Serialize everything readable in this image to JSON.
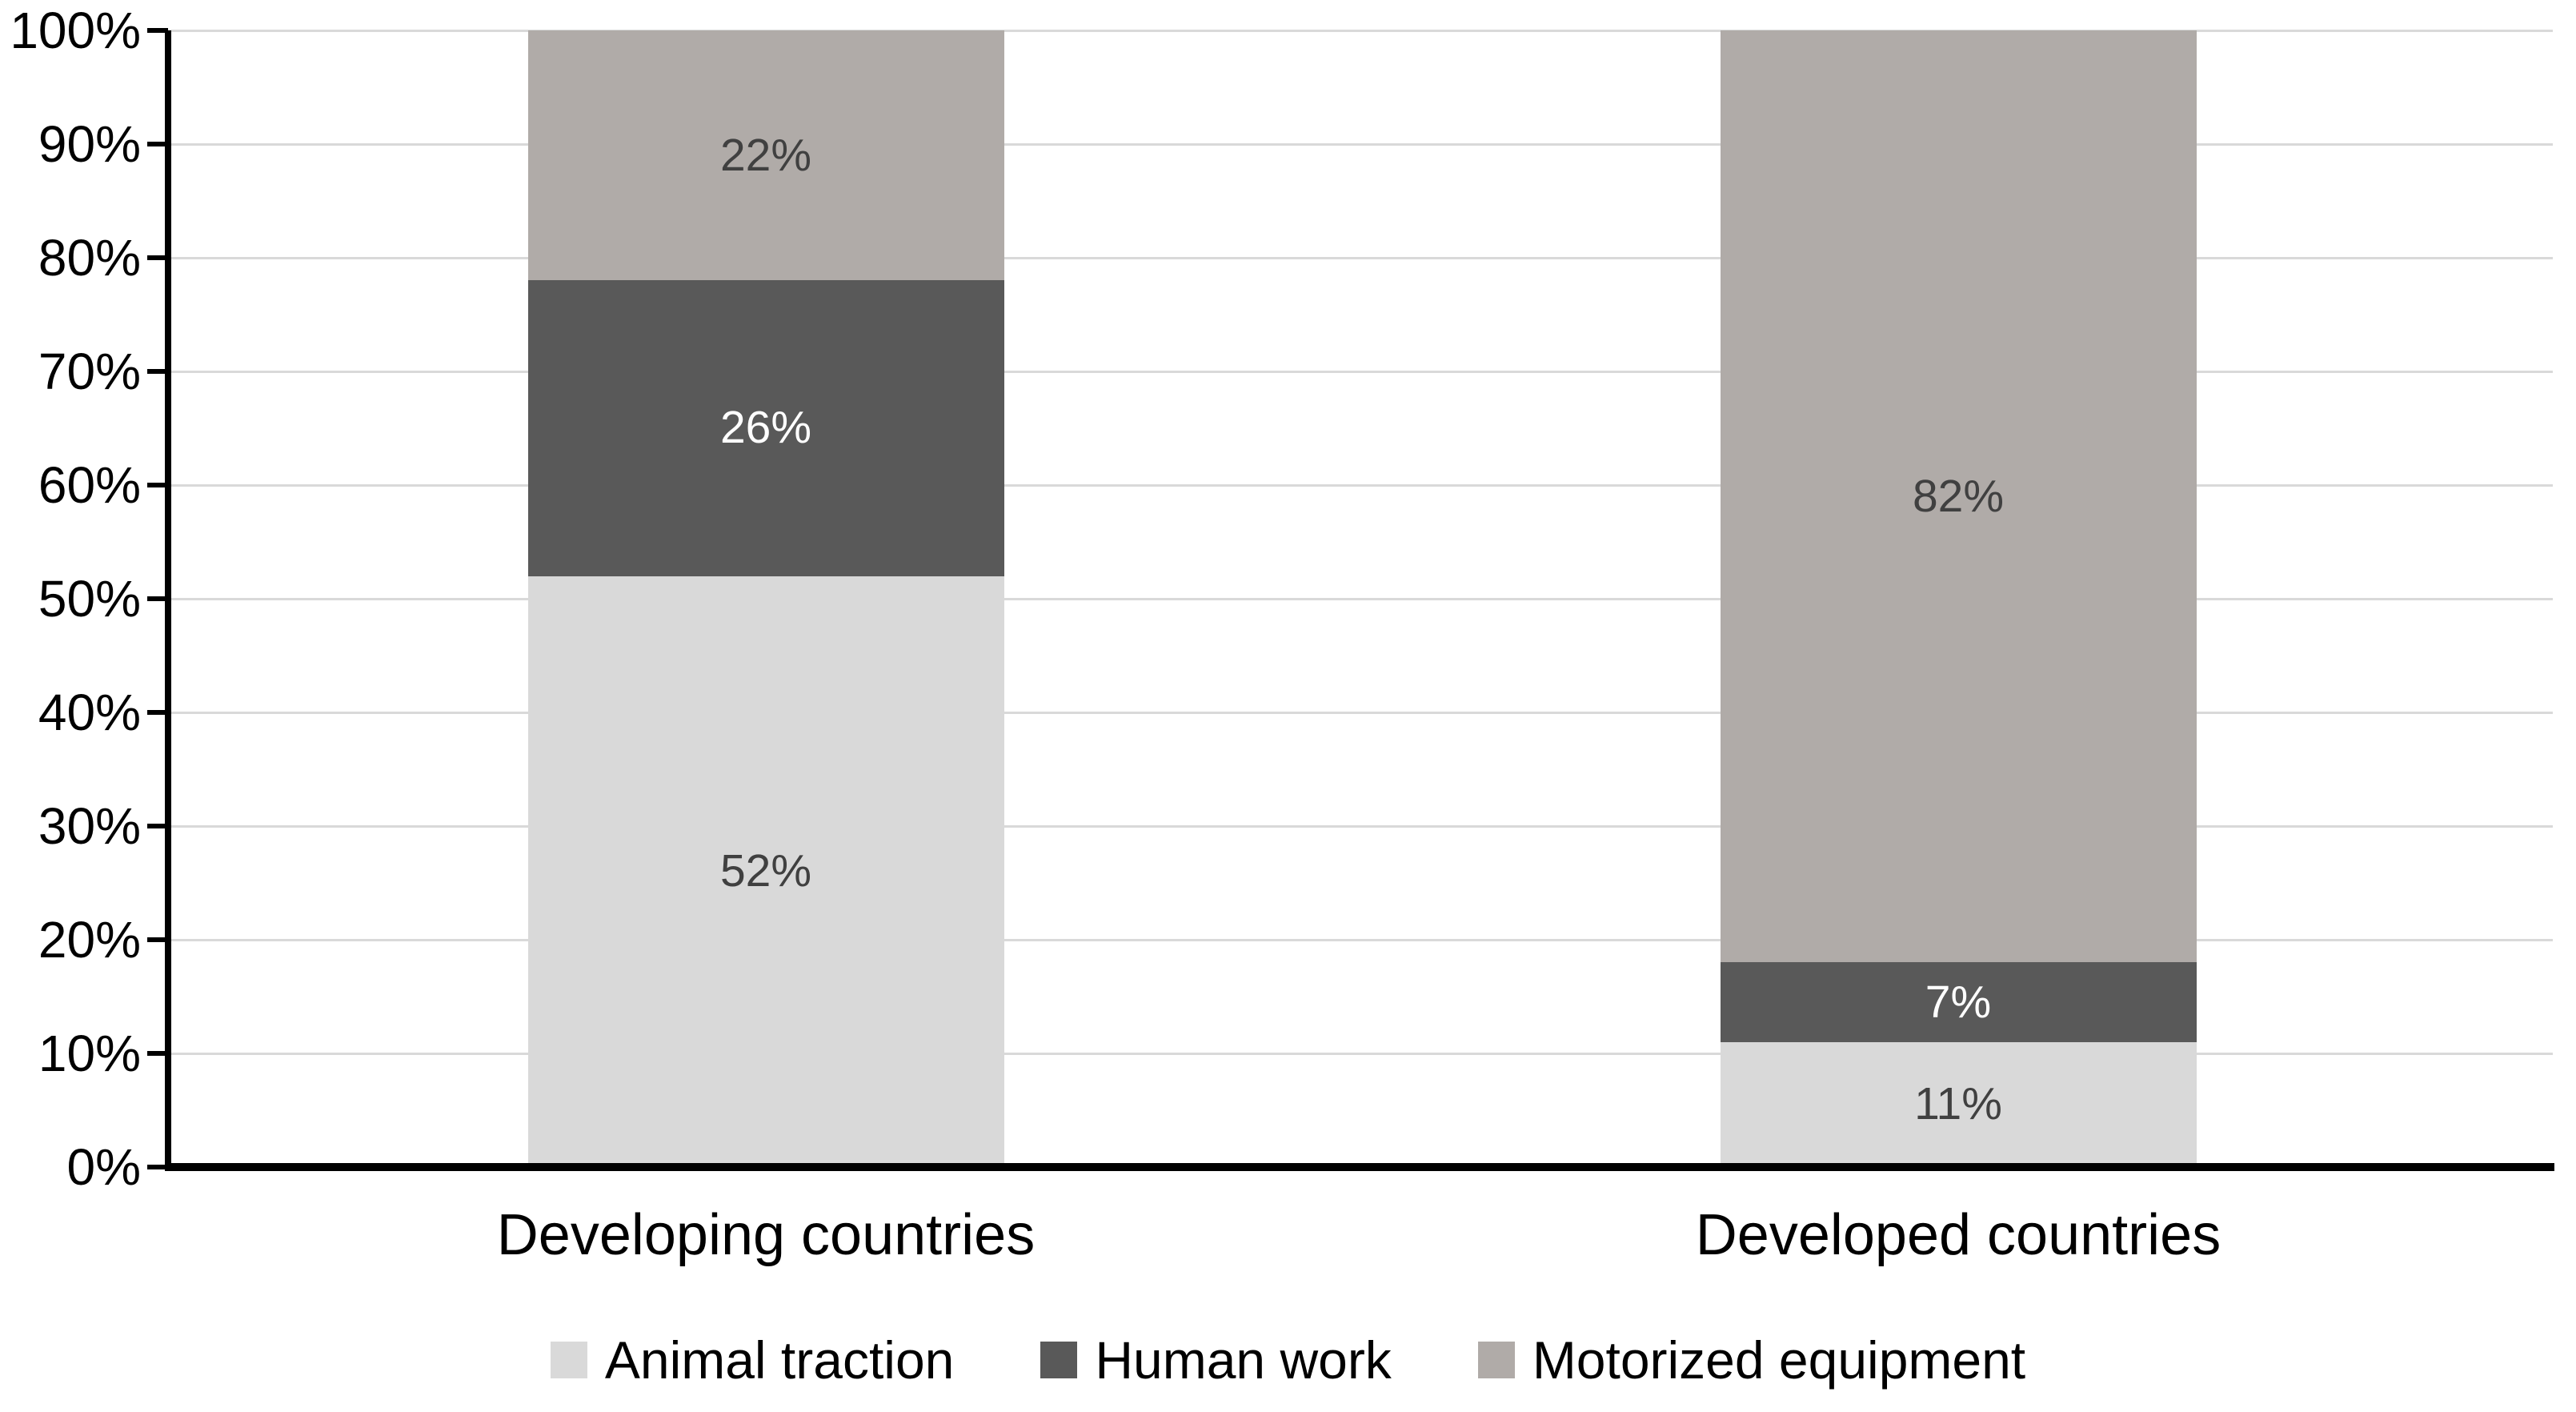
{
  "chart_data": {
    "type": "bar",
    "variant": "stacked-100-percent",
    "title": "",
    "xlabel": "",
    "ylabel": "",
    "background": "#ffffff",
    "categories": [
      "Developing countries",
      "Developed countries"
    ],
    "series": [
      {
        "name": "Animal traction",
        "color": "#d9d9d9",
        "label_color": "#404040",
        "values": [
          52,
          11
        ],
        "labels": [
          "52%",
          "11%"
        ]
      },
      {
        "name": "Human work",
        "color": "#595959",
        "label_color": "#ffffff",
        "values": [
          26,
          7
        ],
        "labels": [
          "26%",
          "7%"
        ]
      },
      {
        "name": "Motorized equipment",
        "color": "#b0aba8",
        "label_color": "#404040",
        "values": [
          22,
          82
        ],
        "labels": [
          "22%",
          "82%"
        ]
      }
    ],
    "y_axis": {
      "min": 0,
      "max": 100,
      "tick_values": [
        0,
        10,
        20,
        30,
        40,
        50,
        60,
        70,
        80,
        90,
        100
      ],
      "tick_labels": [
        "0%",
        "10%",
        "20%",
        "30%",
        "40%",
        "50%",
        "60%",
        "70%",
        "80%",
        "90%",
        "100%"
      ],
      "grid": true,
      "gridline_color": "#d9d9d9",
      "axis_color": "#000000"
    },
    "legend": {
      "position": "bottom",
      "items": [
        "Animal traction",
        "Human work",
        "Motorized equipment"
      ]
    }
  }
}
